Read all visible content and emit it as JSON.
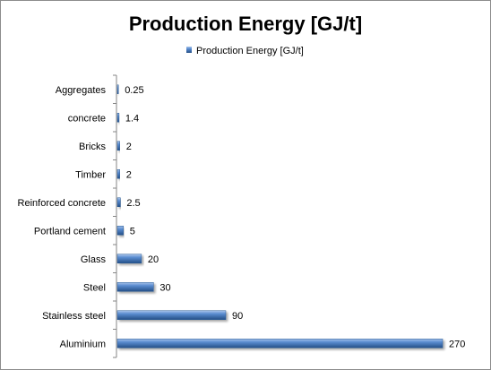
{
  "chart_data": {
    "type": "bar",
    "orientation": "horizontal",
    "title": "Production Energy [GJ/t]",
    "xlabel": "",
    "ylabel": "",
    "categories": [
      "Aggregates",
      "concrete",
      "Bricks",
      "Timber",
      "Reinforced concrete",
      "Portland cement",
      "Glass",
      "Steel",
      "Stainless steel",
      "Aluminium"
    ],
    "series": [
      {
        "name": "Production Energy [GJ/t]",
        "values": [
          0.25,
          1.4,
          2,
          2,
          2.5,
          5,
          20,
          30,
          90,
          270
        ],
        "data_labels": [
          "0.25",
          "1.4",
          "2",
          "2",
          "2.5",
          "5",
          "20",
          "30",
          "90",
          "270"
        ],
        "color": "#4a7ebb"
      }
    ],
    "xlim": [
      0,
      270
    ],
    "grid": false,
    "legend_position": "top"
  }
}
